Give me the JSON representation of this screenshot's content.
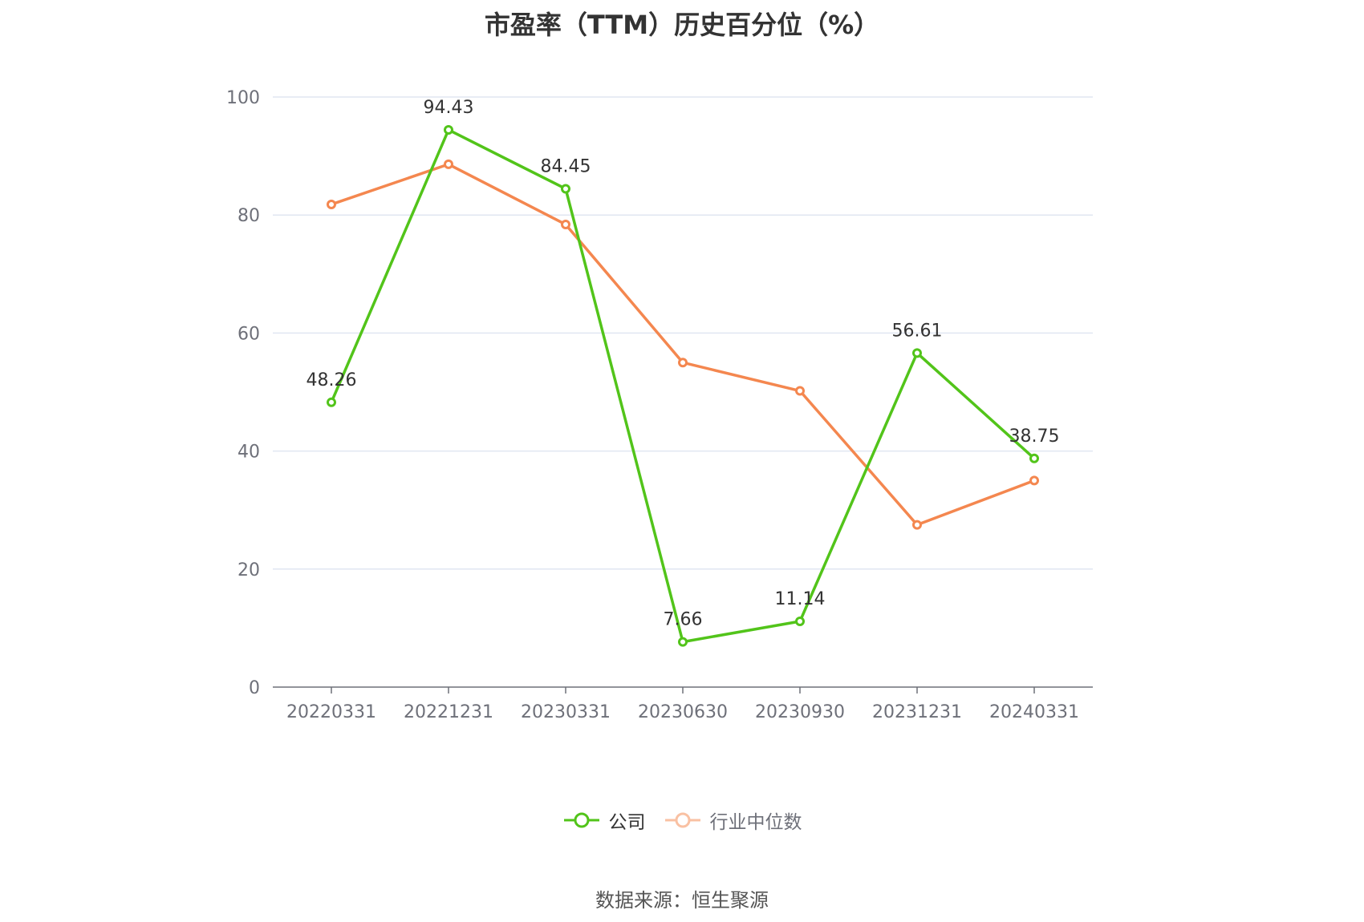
{
  "chart_data": {
    "type": "line",
    "title": "市盈率（TTM）历史百分位（%）",
    "categories": [
      "20220331",
      "20221231",
      "20230331",
      "20230630",
      "20230930",
      "20231231",
      "20240331"
    ],
    "ylim": [
      0,
      100
    ],
    "yticks": [
      0,
      20,
      40,
      60,
      80,
      100
    ],
    "grid": true,
    "legend_position": "bottom",
    "series": [
      {
        "name": "公司",
        "color": "#52c41a",
        "values": [
          48.26,
          94.43,
          84.45,
          7.66,
          11.14,
          56.61,
          38.75
        ],
        "labels": [
          "48.26",
          "94.43",
          "84.45",
          "7.66",
          "11.14",
          "56.61",
          "38.75"
        ]
      },
      {
        "name": "行业中位数",
        "color": "#f4874f",
        "values": [
          81.8,
          88.6,
          78.4,
          55.0,
          50.2,
          27.5,
          35.0
        ]
      }
    ]
  },
  "legend": {
    "company": "公司",
    "industry": "行业中位数",
    "industry_icon_color": "#f9c1a3"
  },
  "source": "数据来源：恒生聚源"
}
